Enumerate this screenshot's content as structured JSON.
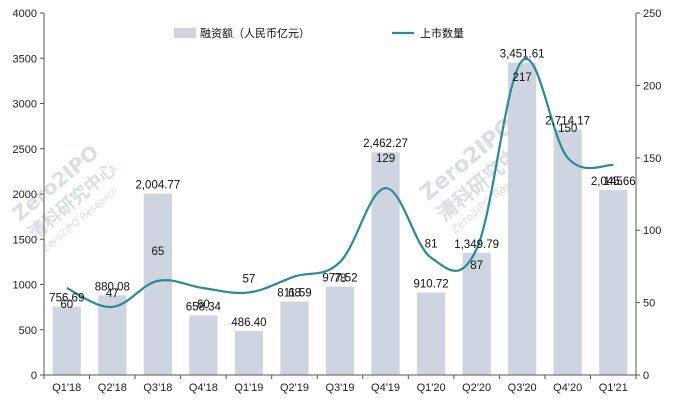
{
  "chart_data": {
    "type": "bar+line",
    "categories": [
      "Q1'18",
      "Q2'18",
      "Q3'18",
      "Q4'18",
      "Q1'19",
      "Q2'19",
      "Q3'19",
      "Q4'19",
      "Q1'20",
      "Q2'20",
      "Q3'20",
      "Q4'20",
      "Q1'21"
    ],
    "series": [
      {
        "name": "融资额（人民币亿元）",
        "type": "bar",
        "axis": "left",
        "color": "#cfd5e0",
        "values": [
          756.69,
          880.08,
          2004.77,
          658.34,
          486.4,
          811.59,
          977.52,
          2462.27,
          910.72,
          1349.79,
          3451.61,
          2714.17,
          2045.66
        ],
        "labels": [
          "756.69",
          "880.08",
          "2,004.77",
          "658.34",
          "486.40",
          "811.59",
          "977.52",
          "2,462.27",
          "910.72",
          "1,349.79",
          "3,451.61",
          "2,714.17",
          "2,045.66"
        ]
      },
      {
        "name": "上市数量",
        "type": "line",
        "axis": "right",
        "color": "#2a8a96",
        "values": [
          60,
          47,
          65,
          60,
          57,
          68,
          78,
          129,
          81,
          87,
          217,
          150,
          145
        ],
        "labels": [
          "60",
          "47",
          "65",
          "60",
          "57",
          "68",
          "78",
          "129",
          "81",
          "87",
          "217",
          "150",
          "145"
        ]
      }
    ],
    "y_left": {
      "min": 0,
      "max": 4000,
      "ticks": [
        "0",
        "500",
        "1000",
        "1500",
        "2000",
        "2500",
        "3000",
        "3500",
        "4000"
      ]
    },
    "y_right": {
      "min": 0,
      "max": 250,
      "ticks": [
        "0",
        "50",
        "100",
        "150",
        "200",
        "250"
      ]
    },
    "legend_position": "top-center",
    "grid": false
  },
  "watermark": {
    "lines": [
      "Zero2IPO",
      "清科研究中心",
      "Zero2IPO Research"
    ]
  }
}
